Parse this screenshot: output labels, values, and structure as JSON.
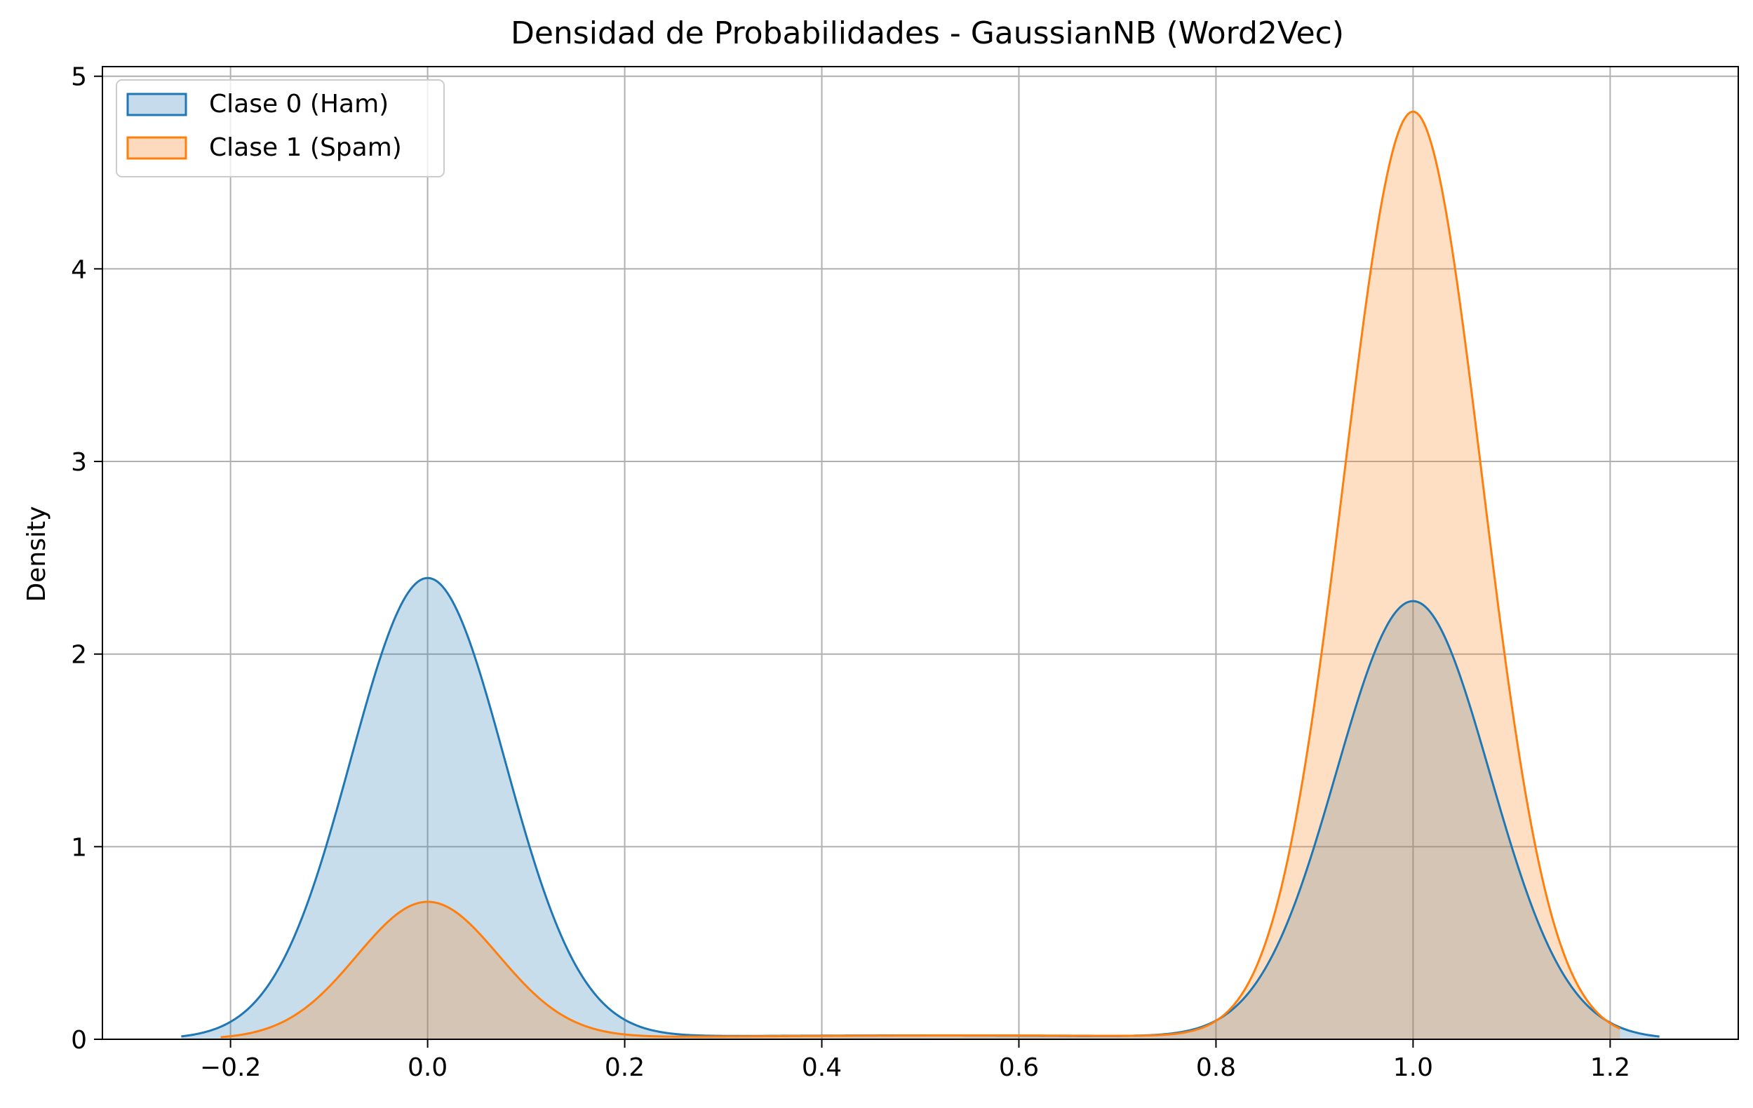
{
  "chart_data": {
    "type": "area",
    "title": "Densidad de Probabilidades - GaussianNB (Word2Vec)",
    "xlabel": "",
    "ylabel": "Density",
    "xlim": [
      -0.33,
      1.33
    ],
    "ylim": [
      0,
      5.05
    ],
    "xticks": [
      -0.2,
      0.0,
      0.2,
      0.4,
      0.6,
      0.8,
      1.0,
      1.2
    ],
    "xtick_labels": [
      "−0.2",
      "0.0",
      "0.2",
      "0.4",
      "0.6",
      "0.8",
      "1.0",
      "1.2"
    ],
    "yticks": [
      0,
      1,
      2,
      3,
      4,
      5
    ],
    "ytick_labels": [
      "0",
      "1",
      "2",
      "3",
      "4",
      "5"
    ],
    "grid": true,
    "legend_position": "top-left",
    "series": [
      {
        "name": "Clase 0 (Ham)",
        "color": "#1f77b4",
        "fill": "#c6dbec",
        "x_range": [
          -0.25,
          1.25
        ],
        "components": [
          {
            "mu": 0.0,
            "sigma": 0.078,
            "peak": 2.39
          },
          {
            "mu": 1.0,
            "sigma": 0.078,
            "peak": 2.27
          },
          {
            "mu": 0.5,
            "sigma": 0.3,
            "peak": 0.02
          }
        ]
      },
      {
        "name": "Clase 1 (Spam)",
        "color": "#ff7f0e",
        "fill": "#fdd9bd",
        "x_range": [
          -0.21,
          1.21
        ],
        "components": [
          {
            "mu": 0.0,
            "sigma": 0.072,
            "peak": 0.71
          },
          {
            "mu": 1.0,
            "sigma": 0.07,
            "peak": 4.81
          },
          {
            "mu": 0.55,
            "sigma": 0.3,
            "peak": 0.02
          }
        ]
      }
    ]
  }
}
